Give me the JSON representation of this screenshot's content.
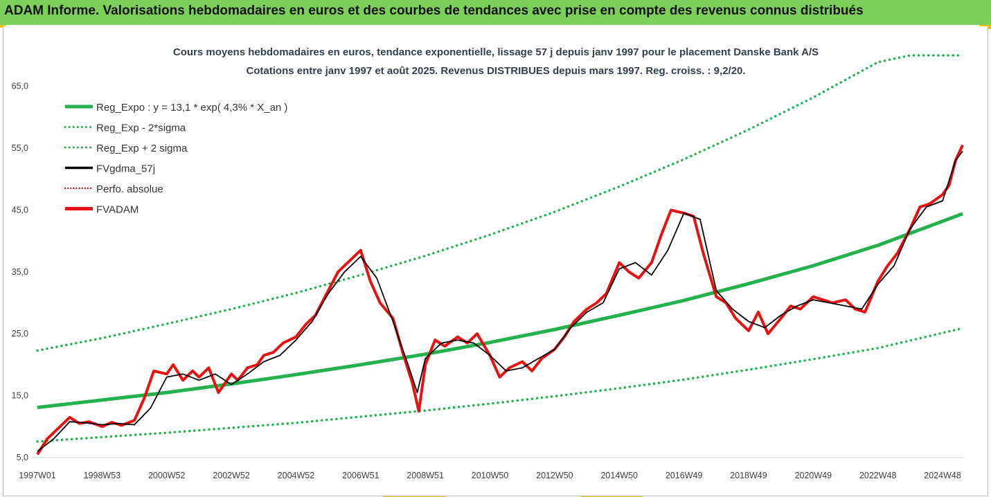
{
  "banner": {
    "text": "ADAM Informe. Valorisations hebdomadaires en euros et des courbes de tendances avec prise en compte des revenus connus distribués"
  },
  "colors": {
    "banner": "#7ccf5a",
    "trend": "#22b14c",
    "price": "#e81010",
    "smooth": "#000000",
    "perfo": "#c00000",
    "accent": "#f2c000"
  },
  "chart_data": {
    "type": "line",
    "title": "Cours moyens hebdomadaires en euros, tendance exponentielle, lissage 57 j depuis janv 1997 pour le placement Danske Bank A/S",
    "subtitle": "Cotations entre janv 1997 et août 2025.  Revenus DISTRIBUES depuis mars 1997. Reg. croiss. : 9,2/20.",
    "xlabel": "",
    "ylabel": "",
    "x_range": [
      1997.0,
      2025.62
    ],
    "ylim": [
      5,
      70
    ],
    "y_ticks": [
      "5,0",
      "15,0",
      "25,0",
      "35,0",
      "45,0",
      "55,0",
      "65,0"
    ],
    "y_tick_values": [
      5,
      15,
      25,
      35,
      45,
      55,
      65
    ],
    "x_ticks": [
      "1997W01",
      "1998W53",
      "2000W52",
      "2002W52",
      "2004W52",
      "2006W51",
      "2008W51",
      "2010W50",
      "2012W50",
      "2014W50",
      "2016W49",
      "2018W49",
      "2020W49",
      "2022W48",
      "2024W48"
    ],
    "x_tick_values": [
      1997.0,
      1999.0,
      2001.0,
      2003.0,
      2005.0,
      2007.0,
      2009.0,
      2011.0,
      2013.0,
      2015.0,
      2017.0,
      2019.0,
      2021.0,
      2023.0,
      2025.0
    ],
    "grid": false,
    "legend_position": "top-left",
    "series": [
      {
        "name": "Reg_Expo : y = 13,1 * exp( 4,3% *  X_an )",
        "style": "solid",
        "color": "#22b14c",
        "x": [
          1997.0,
          1999.0,
          2001.0,
          2003.0,
          2005.0,
          2007.0,
          2009.0,
          2011.0,
          2013.0,
          2015.0,
          2017.0,
          2019.0,
          2021.0,
          2023.0,
          2025.62
        ],
        "values": [
          13.1,
          14.3,
          15.5,
          16.9,
          18.4,
          20.0,
          21.7,
          23.6,
          25.7,
          28.0,
          30.4,
          33.1,
          36.0,
          39.3,
          44.4
        ]
      },
      {
        "name": "Reg_Exp - 2*sigma",
        "style": "dotted",
        "color": "#22b14c",
        "x": [
          1997.0,
          1999.0,
          2001.0,
          2003.0,
          2005.0,
          2007.0,
          2009.0,
          2011.0,
          2013.0,
          2015.0,
          2017.0,
          2019.0,
          2021.0,
          2023.0,
          2025.62
        ],
        "values": [
          7.6,
          8.3,
          9.0,
          9.8,
          10.6,
          11.6,
          12.6,
          13.7,
          14.9,
          16.2,
          17.6,
          19.2,
          20.9,
          22.7,
          25.9
        ]
      },
      {
        "name": "Reg_Exp + 2 sigma",
        "style": "dotted",
        "color": "#22b14c",
        "x": [
          1997.0,
          1999.0,
          2001.0,
          2003.0,
          2005.0,
          2007.0,
          2009.0,
          2011.0,
          2013.0,
          2015.0,
          2017.0,
          2019.0,
          2021.0,
          2023.0,
          2024.0,
          2025.62
        ],
        "values": [
          22.3,
          24.3,
          26.6,
          29.0,
          31.6,
          34.5,
          37.6,
          41.0,
          44.7,
          48.8,
          53.2,
          58.0,
          63.2,
          68.9,
          70.0,
          70.0
        ]
      },
      {
        "name": "FVgdma_57j",
        "style": "solid",
        "color": "#000000",
        "x": [
          1997.0,
          1997.5,
          1998.0,
          1998.5,
          1999.0,
          1999.5,
          2000.0,
          2000.5,
          2001.0,
          2001.5,
          2002.0,
          2002.5,
          2003.0,
          2003.5,
          2004.0,
          2004.5,
          2005.0,
          2005.5,
          2006.0,
          2006.5,
          2007.0,
          2007.5,
          2008.0,
          2008.5,
          2008.75,
          2009.0,
          2009.5,
          2010.0,
          2010.5,
          2011.0,
          2011.5,
          2012.0,
          2012.5,
          2013.0,
          2013.5,
          2014.0,
          2014.5,
          2015.0,
          2015.5,
          2016.0,
          2016.5,
          2017.0,
          2017.5,
          2018.0,
          2018.5,
          2019.0,
          2019.5,
          2020.0,
          2020.5,
          2021.0,
          2021.5,
          2022.0,
          2022.5,
          2023.0,
          2023.5,
          2024.0,
          2024.5,
          2025.0,
          2025.4,
          2025.62
        ],
        "values": [
          6.0,
          8.0,
          10.8,
          10.6,
          10.3,
          10.5,
          10.3,
          13.0,
          18.0,
          18.5,
          17.5,
          18.5,
          16.8,
          18.5,
          20.5,
          21.5,
          24.0,
          27.0,
          31.5,
          35.0,
          37.5,
          34.0,
          27.0,
          19.5,
          15.5,
          21.0,
          23.5,
          24.0,
          23.5,
          21.5,
          19.0,
          19.5,
          21.0,
          22.5,
          26.0,
          28.5,
          30.0,
          35.5,
          36.5,
          34.5,
          38.5,
          44.5,
          43.5,
          32.0,
          29.0,
          27.0,
          26.0,
          28.0,
          29.5,
          30.5,
          30.0,
          29.5,
          29.0,
          33.0,
          36.0,
          42.0,
          45.5,
          46.5,
          53.0,
          54.5
        ]
      },
      {
        "name": "Perfo. absolue",
        "style": "dotted",
        "color": "#c00000",
        "x": [],
        "values": []
      },
      {
        "name": "FVADAM",
        "style": "solid",
        "color": "#e81010",
        "x": [
          1997.0,
          1997.3,
          1997.6,
          1998.0,
          1998.3,
          1998.6,
          1999.0,
          1999.3,
          1999.6,
          2000.0,
          2000.3,
          2000.6,
          2001.0,
          2001.2,
          2001.5,
          2001.8,
          2002.0,
          2002.3,
          2002.6,
          2003.0,
          2003.2,
          2003.5,
          2003.8,
          2004.0,
          2004.3,
          2004.6,
          2005.0,
          2005.3,
          2005.6,
          2006.0,
          2006.3,
          2006.6,
          2007.0,
          2007.3,
          2007.6,
          2008.0,
          2008.3,
          2008.6,
          2008.8,
          2009.0,
          2009.3,
          2009.6,
          2010.0,
          2010.3,
          2010.6,
          2011.0,
          2011.3,
          2011.6,
          2012.0,
          2012.3,
          2012.6,
          2013.0,
          2013.3,
          2013.6,
          2014.0,
          2014.3,
          2014.6,
          2015.0,
          2015.3,
          2015.6,
          2016.0,
          2016.3,
          2016.6,
          2017.0,
          2017.3,
          2017.6,
          2018.0,
          2018.3,
          2018.6,
          2019.0,
          2019.3,
          2019.6,
          2020.0,
          2020.3,
          2020.6,
          2021.0,
          2021.3,
          2021.6,
          2022.0,
          2022.3,
          2022.6,
          2023.0,
          2023.3,
          2023.6,
          2024.0,
          2024.3,
          2024.6,
          2025.0,
          2025.2,
          2025.4,
          2025.62
        ],
        "values": [
          5.5,
          8.0,
          9.5,
          11.5,
          10.5,
          10.8,
          10.0,
          10.7,
          10.2,
          11.0,
          14.5,
          19.0,
          18.5,
          20.0,
          17.5,
          19.0,
          18.0,
          19.5,
          15.5,
          18.5,
          17.5,
          19.5,
          20.0,
          21.5,
          22.0,
          23.5,
          24.5,
          26.5,
          28.0,
          32.0,
          35.0,
          36.5,
          38.5,
          33.5,
          30.0,
          27.5,
          22.0,
          17.0,
          12.5,
          20.0,
          24.0,
          23.0,
          24.5,
          23.5,
          25.0,
          21.5,
          18.0,
          19.5,
          20.5,
          19.0,
          21.0,
          22.5,
          24.5,
          27.0,
          29.0,
          30.0,
          31.5,
          36.5,
          35.0,
          34.0,
          36.5,
          41.0,
          45.0,
          44.5,
          44.0,
          38.0,
          31.0,
          30.0,
          27.5,
          25.5,
          28.5,
          25.0,
          27.5,
          29.5,
          29.0,
          31.0,
          30.5,
          30.0,
          30.5,
          29.0,
          28.5,
          33.5,
          36.0,
          38.0,
          42.0,
          45.5,
          46.0,
          47.5,
          49.0,
          53.0,
          55.5
        ]
      }
    ]
  }
}
